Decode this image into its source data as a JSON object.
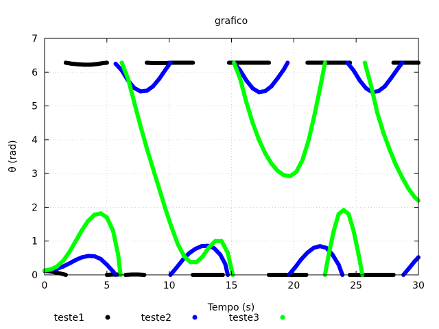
{
  "chart_data": {
    "type": "scatter",
    "title": "grafico",
    "xlabel": "Tempo (s)",
    "ylabel": "θ (rad)",
    "xlim": [
      0,
      30
    ],
    "ylim": [
      0,
      7
    ],
    "xticks": [
      "0",
      "5",
      "10",
      "15",
      "20",
      "25",
      "30"
    ],
    "yticks": [
      "0",
      "1",
      "2",
      "3",
      "4",
      "5",
      "6",
      "7"
    ],
    "grid": true,
    "legend_position": "bottom",
    "series": [
      {
        "name": "teste1",
        "color": "#000000",
        "segments": [
          [
            [
              0,
              0.12
            ],
            [
              0.5,
              0.1
            ],
            [
              1.0,
              0.06
            ],
            [
              1.5,
              0.02
            ],
            [
              1.7,
              0.0
            ]
          ],
          [
            [
              1.7,
              6.28
            ],
            [
              2.2,
              6.25
            ],
            [
              2.7,
              6.23
            ],
            [
              3.2,
              6.22
            ],
            [
              3.7,
              6.22
            ],
            [
              4.2,
              6.24
            ],
            [
              4.7,
              6.27
            ],
            [
              5.0,
              6.28
            ]
          ],
          [
            [
              5.0,
              0.0
            ],
            [
              5.5,
              0.01
            ],
            [
              6.0,
              0.01
            ]
          ],
          [
            [
              6.5,
              0.0
            ],
            [
              7.0,
              0.01
            ],
            [
              7.5,
              0.01
            ],
            [
              8.0,
              0.0
            ]
          ],
          [
            [
              8.2,
              6.28
            ],
            [
              8.7,
              6.27
            ],
            [
              9.2,
              6.27
            ],
            [
              9.7,
              6.27
            ],
            [
              10.2,
              6.28
            ],
            [
              10.7,
              6.28
            ],
            [
              11.2,
              6.28
            ],
            [
              11.7,
              6.28
            ],
            [
              11.9,
              6.28
            ]
          ],
          [
            [
              11.9,
              0.0
            ],
            [
              12.4,
              0.0
            ],
            [
              12.9,
              0.0
            ],
            [
              13.4,
              0.0
            ],
            [
              13.9,
              0.0
            ],
            [
              14.3,
              0.0
            ]
          ],
          [
            [
              14.8,
              6.28
            ],
            [
              15.3,
              6.28
            ],
            [
              15.8,
              6.28
            ],
            [
              16.3,
              6.28
            ],
            [
              16.8,
              6.28
            ],
            [
              17.3,
              6.28
            ],
            [
              17.8,
              6.28
            ],
            [
              18.0,
              6.28
            ]
          ],
          [
            [
              18.0,
              0.0
            ],
            [
              18.5,
              0.0
            ],
            [
              19.0,
              0.0
            ],
            [
              19.5,
              0.0
            ],
            [
              20.0,
              0.0
            ],
            [
              20.5,
              0.0
            ],
            [
              21.0,
              0.0
            ]
          ],
          [
            [
              21.1,
              6.28
            ],
            [
              21.6,
              6.28
            ],
            [
              22.1,
              6.28
            ],
            [
              22.6,
              6.28
            ],
            [
              23.1,
              6.28
            ],
            [
              23.6,
              6.28
            ],
            [
              24.1,
              6.28
            ],
            [
              24.5,
              6.28
            ]
          ],
          [
            [
              24.5,
              0.0
            ],
            [
              25.0,
              0.0
            ],
            [
              25.5,
              0.0
            ],
            [
              26.0,
              0.0
            ],
            [
              26.5,
              0.0
            ],
            [
              27.0,
              0.0
            ],
            [
              27.5,
              0.0
            ],
            [
              28.0,
              0.0
            ]
          ],
          [
            [
              28.0,
              6.28
            ],
            [
              28.5,
              6.28
            ],
            [
              29.0,
              6.28
            ],
            [
              29.5,
              6.28
            ],
            [
              30.0,
              6.28
            ]
          ]
        ]
      },
      {
        "name": "teste2",
        "color": "#0000ff",
        "segments": [
          [
            [
              0,
              0.13
            ],
            [
              0.5,
              0.14
            ],
            [
              1.0,
              0.18
            ],
            [
              1.5,
              0.25
            ],
            [
              2.0,
              0.34
            ],
            [
              2.5,
              0.44
            ],
            [
              3.0,
              0.52
            ],
            [
              3.5,
              0.56
            ],
            [
              4.0,
              0.55
            ],
            [
              4.5,
              0.47
            ],
            [
              5.0,
              0.3
            ],
            [
              5.5,
              0.1
            ],
            [
              5.7,
              0.0
            ]
          ],
          [
            [
              5.7,
              6.25
            ],
            [
              6.2,
              6.05
            ],
            [
              6.7,
              5.75
            ],
            [
              7.2,
              5.53
            ],
            [
              7.7,
              5.43
            ],
            [
              8.2,
              5.45
            ],
            [
              8.7,
              5.58
            ],
            [
              9.2,
              5.8
            ],
            [
              9.7,
              6.07
            ],
            [
              10.1,
              6.28
            ]
          ],
          [
            [
              10.1,
              0.0
            ],
            [
              10.6,
              0.22
            ],
            [
              11.1,
              0.45
            ],
            [
              11.6,
              0.64
            ],
            [
              12.1,
              0.77
            ],
            [
              12.6,
              0.85
            ],
            [
              13.1,
              0.86
            ],
            [
              13.6,
              0.79
            ],
            [
              14.1,
              0.6
            ],
            [
              14.5,
              0.32
            ],
            [
              14.7,
              0.0
            ]
          ],
          [
            [
              15.2,
              6.28
            ],
            [
              15.7,
              6.05
            ],
            [
              16.2,
              5.75
            ],
            [
              16.7,
              5.52
            ],
            [
              17.2,
              5.41
            ],
            [
              17.7,
              5.44
            ],
            [
              18.2,
              5.58
            ],
            [
              18.7,
              5.82
            ],
            [
              19.2,
              6.08
            ],
            [
              19.5,
              6.28
            ]
          ],
          [
            [
              19.6,
              0.0
            ],
            [
              20.1,
              0.22
            ],
            [
              20.6,
              0.46
            ],
            [
              21.1,
              0.66
            ],
            [
              21.6,
              0.8
            ],
            [
              22.1,
              0.85
            ],
            [
              22.6,
              0.8
            ],
            [
              23.1,
              0.6
            ],
            [
              23.6,
              0.3
            ],
            [
              23.9,
              0.0
            ]
          ],
          [
            [
              24.3,
              6.28
            ],
            [
              24.8,
              6.05
            ],
            [
              25.3,
              5.75
            ],
            [
              25.8,
              5.52
            ],
            [
              26.3,
              5.41
            ],
            [
              26.8,
              5.44
            ],
            [
              27.3,
              5.58
            ],
            [
              27.8,
              5.82
            ],
            [
              28.3,
              6.08
            ],
            [
              28.7,
              6.28
            ]
          ],
          [
            [
              28.8,
              0.0
            ],
            [
              29.3,
              0.22
            ],
            [
              29.7,
              0.4
            ],
            [
              30.0,
              0.52
            ]
          ]
        ]
      },
      {
        "name": "teste3",
        "color": "#00ff00",
        "segments": [
          [
            [
              0,
              0.13
            ],
            [
              0.5,
              0.16
            ],
            [
              1.0,
              0.25
            ],
            [
              1.5,
              0.42
            ],
            [
              2.0,
              0.68
            ],
            [
              2.5,
              1.0
            ],
            [
              3.0,
              1.32
            ],
            [
              3.5,
              1.6
            ],
            [
              4.0,
              1.78
            ],
            [
              4.5,
              1.82
            ],
            [
              5.0,
              1.7
            ],
            [
              5.5,
              1.3
            ],
            [
              5.9,
              0.6
            ],
            [
              6.1,
              0.0
            ]
          ],
          [
            [
              6.2,
              6.28
            ],
            [
              6.7,
              5.8
            ],
            [
              7.2,
              5.1
            ],
            [
              7.7,
              4.4
            ],
            [
              8.2,
              3.75
            ],
            [
              8.7,
              3.15
            ],
            [
              9.2,
              2.55
            ],
            [
              9.7,
              1.95
            ],
            [
              10.2,
              1.4
            ],
            [
              10.7,
              0.9
            ],
            [
              11.2,
              0.55
            ],
            [
              11.7,
              0.38
            ],
            [
              12.2,
              0.38
            ],
            [
              12.7,
              0.55
            ],
            [
              13.2,
              0.82
            ],
            [
              13.7,
              1.0
            ],
            [
              14.2,
              1.0
            ],
            [
              14.7,
              0.65
            ],
            [
              15.1,
              0.0
            ]
          ],
          [
            [
              15.2,
              6.28
            ],
            [
              15.7,
              5.8
            ],
            [
              16.2,
              5.1
            ],
            [
              16.7,
              4.5
            ],
            [
              17.2,
              4.0
            ],
            [
              17.7,
              3.6
            ],
            [
              18.2,
              3.3
            ],
            [
              18.7,
              3.08
            ],
            [
              19.2,
              2.95
            ],
            [
              19.7,
              2.92
            ],
            [
              20.2,
              3.05
            ],
            [
              20.7,
              3.4
            ],
            [
              21.2,
              4.0
            ],
            [
              21.7,
              4.8
            ],
            [
              22.2,
              5.7
            ],
            [
              22.5,
              6.28
            ]
          ],
          [
            [
              22.5,
              0.0
            ],
            [
              22.8,
              0.6
            ],
            [
              23.2,
              1.3
            ],
            [
              23.6,
              1.8
            ],
            [
              24.0,
              1.92
            ],
            [
              24.4,
              1.8
            ],
            [
              24.8,
              1.3
            ],
            [
              25.2,
              0.6
            ],
            [
              25.5,
              0.0
            ]
          ],
          [
            [
              25.7,
              6.28
            ],
            [
              26.2,
              5.6
            ],
            [
              26.7,
              4.8
            ],
            [
              27.2,
              4.2
            ],
            [
              27.7,
              3.7
            ],
            [
              28.2,
              3.25
            ],
            [
              28.7,
              2.88
            ],
            [
              29.2,
              2.55
            ],
            [
              29.7,
              2.3
            ],
            [
              30.0,
              2.2
            ]
          ]
        ]
      }
    ]
  }
}
